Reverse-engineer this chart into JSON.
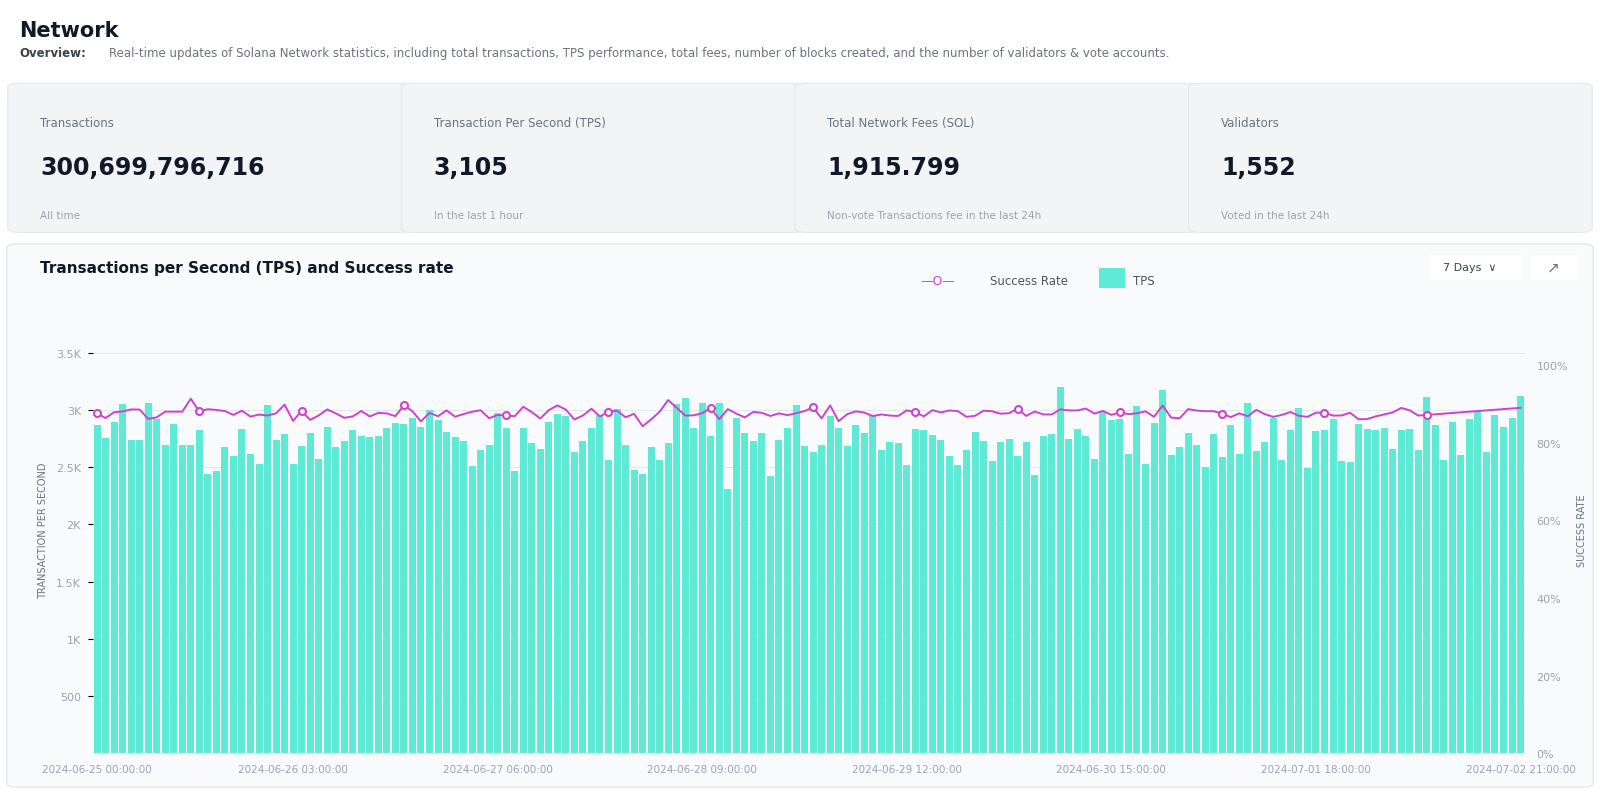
{
  "title": "Network",
  "overview_bold": "Overview:",
  "overview_text": "Real-time updates of Solana Network statistics, including total transactions, TPS performance, total fees, number of blocks created, and the number of validators & vote accounts.",
  "stats": [
    {
      "label": "Transactions",
      "value": "300,699,796,716",
      "sublabel": "All time"
    },
    {
      "label": "Transaction Per Second (TPS)",
      "value": "3,105",
      "sublabel": "In the last 1 hour"
    },
    {
      "label": "Total Network Fees (SOL)",
      "value": "1,915.799",
      "sublabel": "Non-vote Transactions fee in the last 24h"
    },
    {
      "label": "Validators",
      "value": "1,552",
      "sublabel": "Voted in the last 24h"
    }
  ],
  "chart_title": "Transactions per Second (TPS) and Success rate",
  "chart_button": "7 Days",
  "tps_color": "#5EEAD4",
  "success_color": "#CC44CC",
  "bg_color": "#FFFFFF",
  "card_bg": "#F3F4F6",
  "card_border": "#E5E7EB",
  "chart_bg": "#F9FAFB",
  "chart_border": "#E5E7EB",
  "x_labels": [
    "2024-06-25 00:00:00",
    "2024-06-26 03:00:00",
    "2024-06-27 06:00:00",
    "2024-06-28 09:00:00",
    "2024-06-29 12:00:00",
    "2024-06-30 15:00:00",
    "2024-07-01 18:00:00",
    "2024-07-02 21:00:00"
  ],
  "y_left_ticks": [
    "500",
    "1K",
    "1.5K",
    "2K",
    "2.5K",
    "3K",
    "3.5K"
  ],
  "y_left_vals": [
    500,
    1000,
    1500,
    2000,
    2500,
    3000,
    3500
  ],
  "y_right_ticks": [
    "0%",
    "20%",
    "40%",
    "60%",
    "80%",
    "100%"
  ],
  "y_right_vals": [
    0,
    20,
    40,
    60,
    80,
    100
  ],
  "ylabel_left": "TRANSACTION PER SECOND",
  "ylabel_right": "SUCCESS RATE",
  "grid_color": "#E5E7EB",
  "tick_color": "#9CA3AF",
  "label_color": "#6B7280"
}
